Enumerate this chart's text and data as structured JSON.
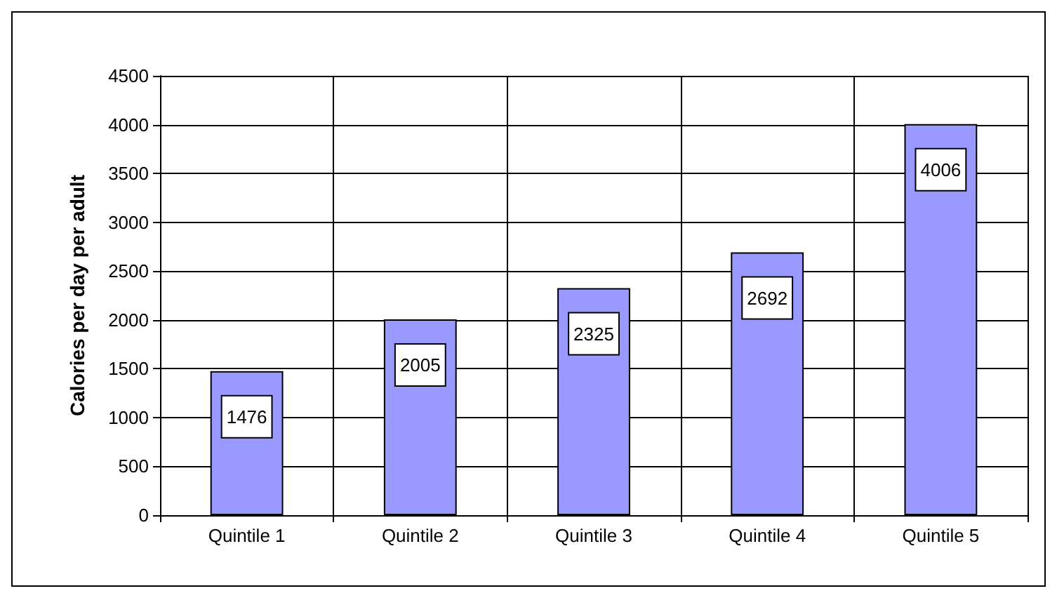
{
  "chart_data": {
    "type": "bar",
    "ylabel": "Calories per day per adult",
    "categories": [
      "Quintile 1",
      "Quintile 2",
      "Quintile 3",
      "Quintile 4",
      "Quintile 5"
    ],
    "values": [
      1476,
      2005,
      2325,
      2692,
      4006
    ],
    "color": "#9999ff",
    "ylim": [
      0,
      4500
    ],
    "yticks": [
      0,
      500,
      1000,
      1500,
      2000,
      2500,
      3000,
      3500,
      4000,
      4500
    ],
    "grid": true,
    "data_labels": true
  }
}
